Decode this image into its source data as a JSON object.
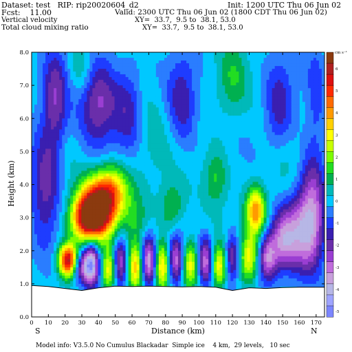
{
  "header": {
    "dataset": "Dataset: test   RIP: rip20020604_d2",
    "init": "Init: 1200 UTC Thu 06 Jun 02",
    "fcst": "Fcst:    11.00",
    "valid": "Valid: 2300 UTC Thu 06 Jun 02 (1800 CDT Thu 06 Jun 02)",
    "field1": "Vertical velocity",
    "xy1": "XY=  33.7,  9.5 to  38.1, 53.0",
    "field2": "Total cloud mixing ratio",
    "xy2": "XY=  33.7,  9.5 to  38.1, 53.0"
  },
  "footer": {
    "model_info": "Model info: V3.5.0 No Cumulus Blackadar  Simple ice    4 km,  29 levels,   10 sec"
  },
  "chart_data": {
    "type": "heatmap",
    "xlabel": "Distance (km)",
    "ylabel": "Height (km)",
    "xlim": [
      0,
      175
    ],
    "ylim": [
      0,
      8
    ],
    "x_ticks": [
      0,
      10,
      20,
      30,
      40,
      50,
      60,
      70,
      80,
      90,
      100,
      110,
      120,
      130,
      140,
      150,
      160,
      170
    ],
    "y_ticks": [
      "0.0",
      "1.0",
      "2.0",
      "3.0",
      "4.0",
      "5.0",
      "6.0",
      "7.0",
      "8.0"
    ],
    "direction_left": "S",
    "direction_right": "N",
    "colorbar": {
      "units": "cm s⁻¹",
      "tick_labels": [
        "6",
        "5",
        "4",
        "3",
        "2",
        "1",
        "0",
        "-1",
        "-2",
        "-3",
        "-4",
        "-5"
      ],
      "tick_values": [
        6,
        5,
        4,
        3,
        2,
        1,
        0,
        -1,
        -2,
        -3,
        -4,
        -5
      ],
      "colors": [
        "#8b3a0f",
        "#b02020",
        "#dd1010",
        "#ff2a00",
        "#ff6a00",
        "#ff9a00",
        "#ffd000",
        "#ffff00",
        "#c8ff00",
        "#7cfc00",
        "#22dd22",
        "#00b050",
        "#00b9b9",
        "#00c8ff",
        "#2a7dff",
        "#1e3cff",
        "#3a1fb0",
        "#6a2eaa",
        "#9a3ed2",
        "#c06cdc",
        "#c8a0dc",
        "#b7b7e6",
        "#9fa4ff",
        "#7c86ff"
      ],
      "color_values": [
        6.5,
        6,
        5.5,
        5,
        4.5,
        4,
        3.5,
        3,
        2.5,
        2,
        1.5,
        1,
        0.5,
        0,
        -0.5,
        -1,
        -1.5,
        -2,
        -2.5,
        -3,
        -3.5,
        -4,
        -4.5,
        -5
      ]
    },
    "terrain_km": {
      "x": [
        0,
        10,
        20,
        30,
        40,
        50,
        60,
        70,
        80,
        90,
        100,
        110,
        120,
        130,
        140,
        150,
        160,
        175
      ],
      "height": [
        0.95,
        0.92,
        0.86,
        0.8,
        0.88,
        0.93,
        0.92,
        0.93,
        0.92,
        0.91,
        0.92,
        0.9,
        0.8,
        0.88,
        0.86,
        0.89,
        0.9,
        0.9
      ]
    },
    "features": [
      {
        "x": 22,
        "y": 1.7,
        "value": 6.5,
        "sx": 4,
        "sy": 0.35
      },
      {
        "x": 38,
        "y": 3.2,
        "value": 6.0,
        "sx": 8,
        "sy": 0.55
      },
      {
        "x": 47,
        "y": 3.8,
        "value": 4.0,
        "sx": 8,
        "sy": 0.55
      },
      {
        "x": 33,
        "y": 2.9,
        "value": 3.5,
        "sx": 7,
        "sy": 0.45
      },
      {
        "x": 30,
        "y": 1.5,
        "value": -3.0,
        "sx": 5,
        "sy": 0.35
      },
      {
        "x": 36,
        "y": 1.6,
        "value": -3.5,
        "sx": 3,
        "sy": 0.5
      },
      {
        "x": 46,
        "y": 1.4,
        "value": 3.0,
        "sx": 3,
        "sy": 0.45
      },
      {
        "x": 53,
        "y": 1.7,
        "value": -3.0,
        "sx": 3,
        "sy": 0.5
      },
      {
        "x": 62,
        "y": 1.5,
        "value": 3.5,
        "sx": 3,
        "sy": 0.5
      },
      {
        "x": 70,
        "y": 1.7,
        "value": -3.5,
        "sx": 3,
        "sy": 0.5
      },
      {
        "x": 78,
        "y": 1.5,
        "value": 3.5,
        "sx": 3,
        "sy": 0.5
      },
      {
        "x": 86,
        "y": 1.7,
        "value": -3.0,
        "sx": 3,
        "sy": 0.5
      },
      {
        "x": 95,
        "y": 1.6,
        "value": 3.0,
        "sx": 3,
        "sy": 0.5
      },
      {
        "x": 104,
        "y": 1.7,
        "value": -3.0,
        "sx": 3,
        "sy": 0.5
      },
      {
        "x": 112,
        "y": 1.5,
        "value": 3.0,
        "sx": 3,
        "sy": 0.45
      },
      {
        "x": 120,
        "y": 1.8,
        "value": -2.5,
        "sx": 3,
        "sy": 0.5
      },
      {
        "x": 130,
        "y": 1.8,
        "value": 3.0,
        "sx": 4,
        "sy": 0.5
      },
      {
        "x": 134,
        "y": 3.2,
        "value": 4.0,
        "sx": 4,
        "sy": 0.5
      },
      {
        "x": 141,
        "y": 1.8,
        "value": -3.0,
        "sx": 4,
        "sy": 0.5
      },
      {
        "x": 150,
        "y": 2.3,
        "value": -2.5,
        "sx": 5,
        "sy": 0.6
      },
      {
        "x": 162,
        "y": 2.6,
        "value": -3.0,
        "sx": 8,
        "sy": 0.9
      },
      {
        "x": 168,
        "y": 3.5,
        "value": -2.0,
        "sx": 5,
        "sy": 1.2
      },
      {
        "x": 8,
        "y": 4.0,
        "value": -2.0,
        "sx": 6,
        "sy": 1.2
      },
      {
        "x": 14,
        "y": 6.5,
        "value": -2.0,
        "sx": 5,
        "sy": 1.1
      },
      {
        "x": 40,
        "y": 6.5,
        "value": -2.5,
        "sx": 8,
        "sy": 0.9
      },
      {
        "x": 58,
        "y": 6.3,
        "value": -1.5,
        "sx": 6,
        "sy": 1.0
      },
      {
        "x": 90,
        "y": 6.5,
        "value": -1.5,
        "sx": 6,
        "sy": 1.0
      },
      {
        "x": 148,
        "y": 6.2,
        "value": -1.5,
        "sx": 6,
        "sy": 1.1
      },
      {
        "x": 170,
        "y": 6.8,
        "value": -1.0,
        "sx": 4,
        "sy": 1.0
      },
      {
        "x": 30,
        "y": 7.5,
        "value": 1.0,
        "sx": 5,
        "sy": 0.6
      },
      {
        "x": 120,
        "y": 7.2,
        "value": 1.0,
        "sx": 6,
        "sy": 0.8
      },
      {
        "x": 70,
        "y": 5.5,
        "value": 0.5,
        "sx": 8,
        "sy": 1.0
      },
      {
        "x": 110,
        "y": 4.2,
        "value": 1.5,
        "sx": 5,
        "sy": 0.6
      },
      {
        "x": 84,
        "y": 3.3,
        "value": 1.5,
        "sx": 5,
        "sy": 0.5
      },
      {
        "x": 62,
        "y": 2.9,
        "value": 1.0,
        "sx": 5,
        "sy": 0.5
      },
      {
        "x": 150,
        "y": 4.5,
        "value": 0.5,
        "sx": 6,
        "sy": 1.0
      }
    ]
  }
}
